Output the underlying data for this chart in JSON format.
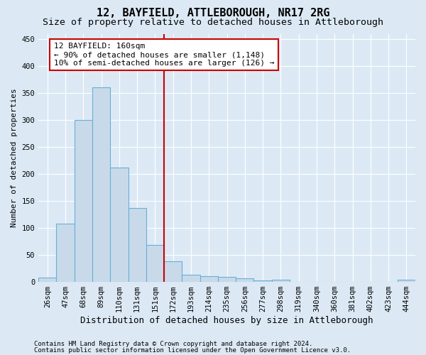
{
  "title1": "12, BAYFIELD, ATTLEBOROUGH, NR17 2RG",
  "title2": "Size of property relative to detached houses in Attleborough",
  "xlabel": "Distribution of detached houses by size in Attleborough",
  "ylabel": "Number of detached properties",
  "footnote1": "Contains HM Land Registry data © Crown copyright and database right 2024.",
  "footnote2": "Contains public sector information licensed under the Open Government Licence v3.0.",
  "bin_labels": [
    "26sqm",
    "47sqm",
    "68sqm",
    "89sqm",
    "110sqm",
    "131sqm",
    "151sqm",
    "172sqm",
    "193sqm",
    "214sqm",
    "235sqm",
    "256sqm",
    "277sqm",
    "298sqm",
    "319sqm",
    "340sqm",
    "360sqm",
    "381sqm",
    "402sqm",
    "423sqm",
    "444sqm"
  ],
  "bar_values": [
    8,
    108,
    300,
    360,
    212,
    136,
    68,
    38,
    13,
    10,
    9,
    6,
    2,
    3,
    0,
    0,
    0,
    0,
    0,
    0,
    3
  ],
  "bar_color": "#c8daea",
  "bar_edge_color": "#6aaed6",
  "property_line_x": 6.5,
  "property_line_color": "#cc0000",
  "annotation_box_text": "12 BAYFIELD: 160sqm\n← 90% of detached houses are smaller (1,148)\n10% of semi-detached houses are larger (126) →",
  "ylim": [
    0,
    460
  ],
  "yticks": [
    0,
    50,
    100,
    150,
    200,
    250,
    300,
    350,
    400,
    450
  ],
  "background_color": "#dce9f5",
  "plot_background_color": "#dce9f5",
  "grid_color": "#ffffff",
  "title1_fontsize": 11,
  "title2_fontsize": 9.5,
  "ylabel_fontsize": 8,
  "xlabel_fontsize": 9,
  "tick_fontsize": 7.5,
  "annot_fontsize": 8,
  "footnote_fontsize": 6.5
}
